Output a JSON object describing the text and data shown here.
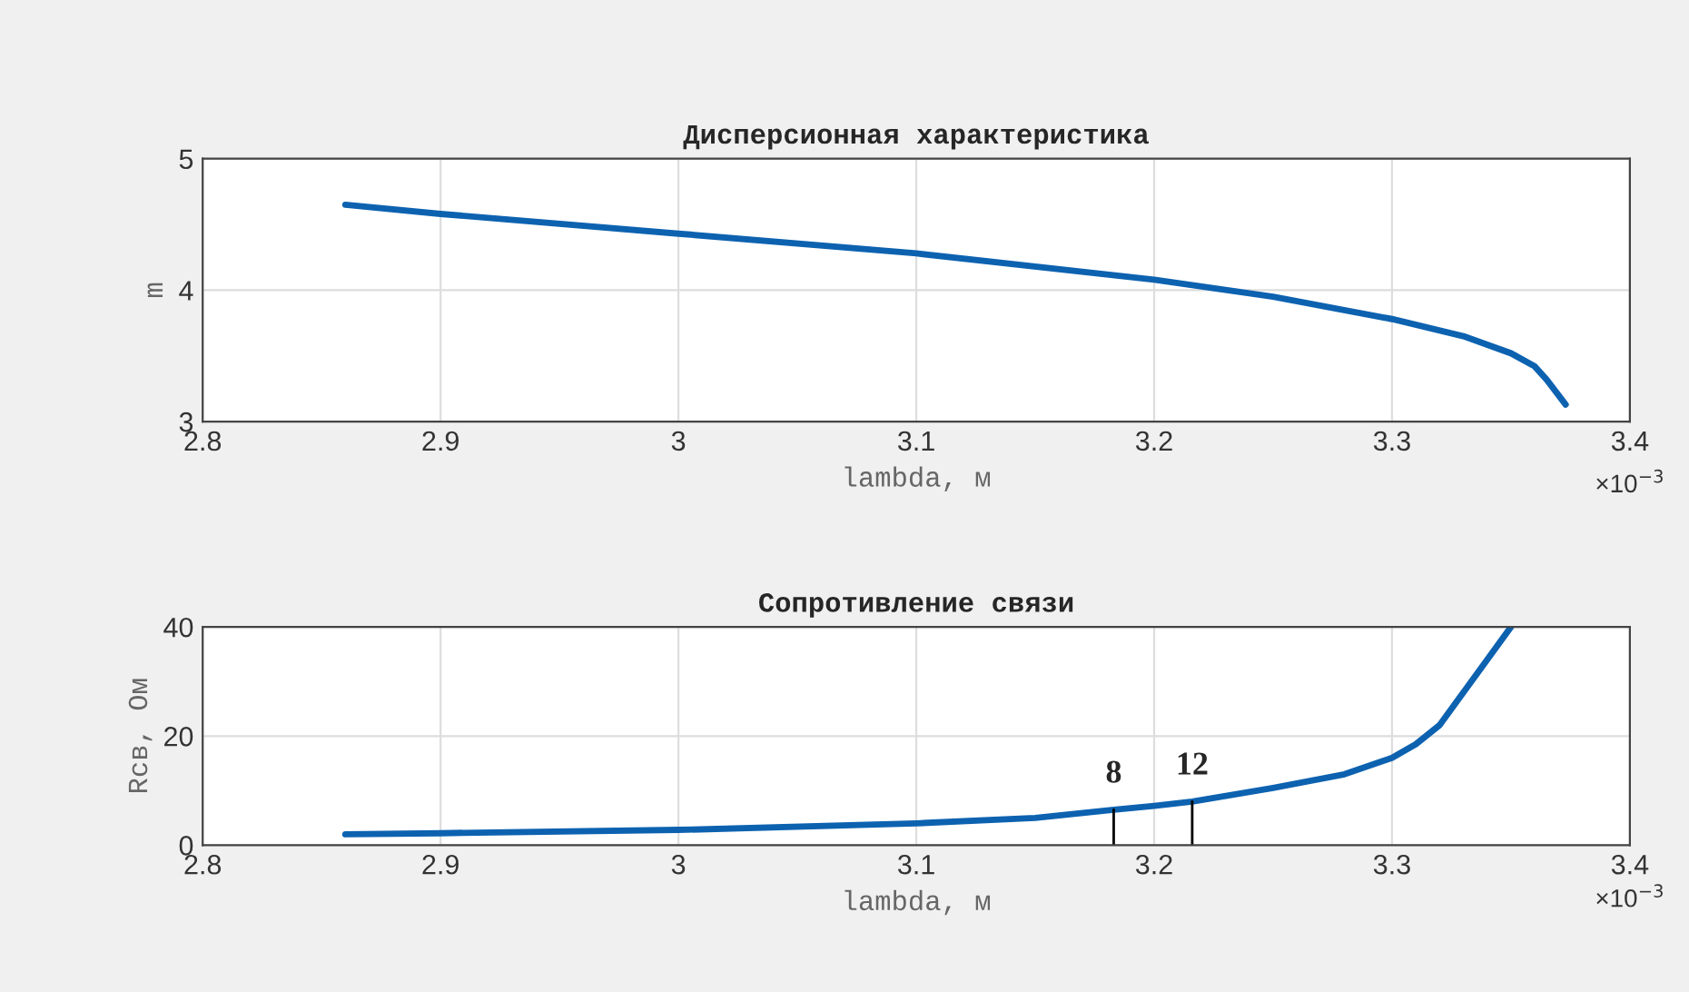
{
  "chart_data": [
    {
      "type": "line",
      "title": "Дисперсионная характеристика",
      "xlabel": "lambda, м",
      "ylabel": "m",
      "x": [
        2.86,
        2.9,
        3.0,
        3.1,
        3.2,
        3.25,
        3.3,
        3.33,
        3.35,
        3.36,
        3.365,
        3.373
      ],
      "series": [
        {
          "color": "#0d62b0",
          "values": [
            4.65,
            4.58,
            4.43,
            4.28,
            4.08,
            3.95,
            3.78,
            3.65,
            3.52,
            3.42,
            3.32,
            3.13
          ]
        }
      ],
      "xlim": [
        2.8,
        3.4
      ],
      "xticks": [
        2.8,
        2.9,
        3,
        3.1,
        3.2,
        3.3,
        3.4
      ],
      "ylim": [
        3,
        5
      ],
      "yticks": [
        3,
        4,
        5
      ],
      "grid": true,
      "annotations": [
        "×10$^{−3}$"
      ]
    },
    {
      "type": "line",
      "title": "Сопротивление связи",
      "xlabel": "lambda, м",
      "ylabel": "Rсв, Ом",
      "x": [
        2.86,
        2.9,
        3.0,
        3.1,
        3.15,
        3.183,
        3.2,
        3.216,
        3.25,
        3.28,
        3.3,
        3.31,
        3.32,
        3.33,
        3.34,
        3.35
      ],
      "series": [
        {
          "color": "#0d62b0",
          "values": [
            2.0,
            2.2,
            2.8,
            4.0,
            5.0,
            6.5,
            7.2,
            8.0,
            10.5,
            13,
            16,
            18.5,
            22,
            28,
            34,
            40
          ]
        }
      ],
      "xlim": [
        2.8,
        3.4
      ],
      "xticks": [
        2.8,
        2.9,
        3,
        3.1,
        3.2,
        3.3,
        3.4
      ],
      "ylim": [
        0,
        40
      ],
      "yticks": [
        0,
        20,
        40
      ],
      "grid": true,
      "annotations": [
        {
          "text": "8",
          "x": 3.183,
          "y": 6.5
        },
        {
          "text": "12",
          "x": 3.216,
          "y": 8.0
        },
        "×10$^{−3}$"
      ]
    }
  ]
}
